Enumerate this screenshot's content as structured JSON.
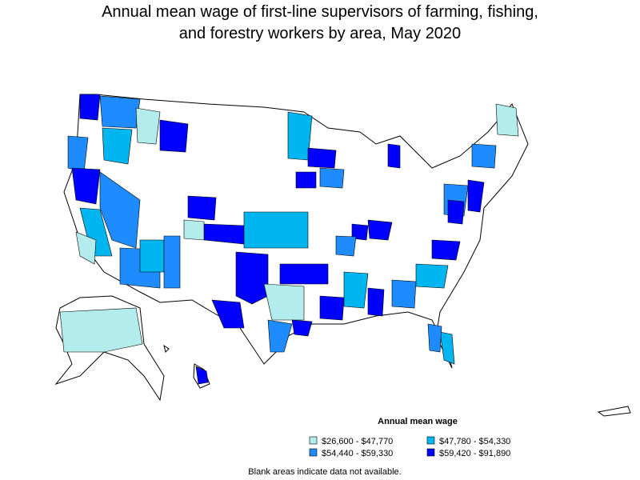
{
  "title_lines": [
    "Annual mean wage of first-line supervisors of farming, fishing,",
    "and forestry workers by area, May 2020"
  ],
  "legend": {
    "title": "Annual mean wage",
    "items": [
      {
        "label": "$26,600 - $47,770",
        "color": "#b2ecec"
      },
      {
        "label": "$47,780 - $54,330",
        "color": "#00b6f0"
      },
      {
        "label": "$54,440 - $59,330",
        "color": "#1e8cff"
      },
      {
        "label": "$59,420 - $91,890",
        "color": "#0000ff"
      }
    ]
  },
  "note": "Blank areas indicate data not available."
}
